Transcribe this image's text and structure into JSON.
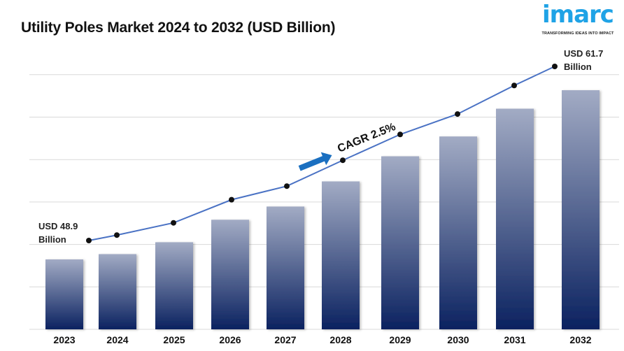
{
  "title": "Utility Poles Market 2024 to 2032 (USD Billion)",
  "logo": {
    "word": "imarc",
    "tagline": "TRANSFORMING IDEAS INTO IMPACT",
    "color": "#1fa3e6"
  },
  "chart_data": {
    "type": "bar",
    "title": "Utility Poles Market 2024 to 2032 (USD Billion)",
    "categories": [
      "2023",
      "2024",
      "2025",
      "2026",
      "2027",
      "2028",
      "2029",
      "2030",
      "2031",
      "2032"
    ],
    "values": [
      48.9,
      49.3,
      50.2,
      51.9,
      52.9,
      54.8,
      56.7,
      58.2,
      60.3,
      61.7
    ],
    "overlay": "line",
    "grid": true,
    "annotations": {
      "start_line1": "USD 48.9",
      "start_line2": "Billion",
      "end_line1": "USD 61.7",
      "end_line2": "Billion",
      "cagr": "CAGR  2.5%"
    },
    "colors": {
      "bar_top": "#a2abc4",
      "bar_bottom": "#0b2260",
      "line": "#4a72c4",
      "arrow": "#1a6fc0",
      "grid": "#d9d9d9"
    }
  }
}
